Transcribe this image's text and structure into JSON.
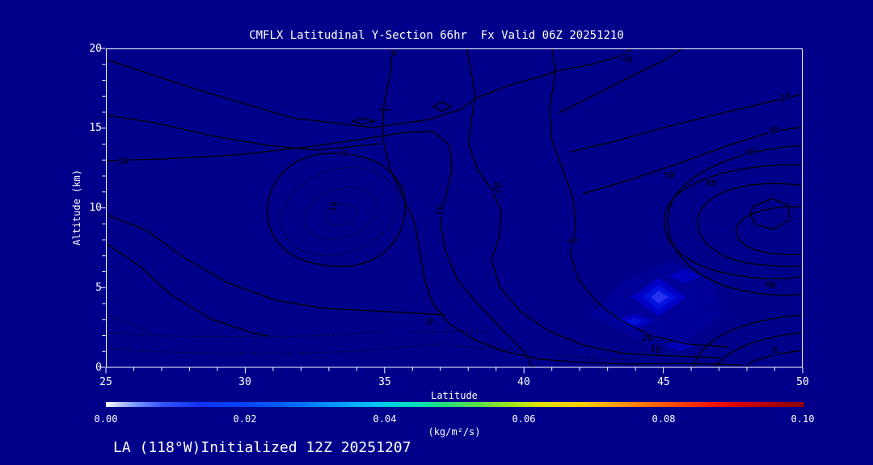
{
  "title": "CMFLX Latitudinal Y-Section 66hr  Fx Valid 06Z 20251210",
  "footer": "LA (118°W)Initialized 12Z 20251207",
  "axes": {
    "y": {
      "label": "Altitude (km)",
      "ticks": [
        "20",
        "15",
        "10",
        "5",
        "0"
      ]
    },
    "x": {
      "label": "Latitude",
      "ticks": [
        "25",
        "30",
        "35",
        "40",
        "45",
        "50"
      ]
    }
  },
  "colorbar": {
    "ticks": [
      "0.00",
      "0.02",
      "0.04",
      "0.06",
      "0.08",
      "0.10"
    ],
    "units": "(kg/m²/s)"
  },
  "contour_labels": [
    "0",
    "10",
    "20",
    "30",
    "40",
    "50",
    "60",
    "10",
    "0",
    "-10",
    "10",
    "20",
    "30",
    "0",
    "40",
    "20",
    "10",
    "0"
  ],
  "colors": {
    "background": "#00008B",
    "contour": "#000000",
    "text": "#FFFFFF",
    "frame": "#FFFFFF"
  },
  "chart_data": {
    "type": "contour",
    "title": "CMFLX Latitudinal Y-Section 66hr  Fx Valid 06Z 20251210",
    "xlabel": "Latitude",
    "xlim": [
      25,
      50
    ],
    "xticks": [
      25,
      30,
      35,
      40,
      45,
      50
    ],
    "ylabel": "Altitude (km)",
    "ylim": [
      0,
      20
    ],
    "yticks": [
      0,
      5,
      10,
      15,
      20
    ],
    "contour_levels": [
      -10,
      0,
      10,
      20,
      30,
      40,
      50,
      60
    ],
    "negative_contour_style": "dotted",
    "positive_contour_style": "solid",
    "grid": false,
    "features": [
      {
        "type": "closed_low",
        "lat": 33,
        "alt": 10,
        "innermost_level": -10
      },
      {
        "type": "closed_high",
        "lat": 46.5,
        "alt": 10.5,
        "innermost_level": 60
      },
      {
        "type": "shaded_flux_maximum",
        "lat": 44.8,
        "alt": 4.4,
        "approx_value": 0.012
      },
      {
        "type": "shaded_flux_maximum",
        "lat": 44.0,
        "alt": 2.9,
        "approx_value": 0.008
      },
      {
        "type": "shaded_flux_maximum",
        "lat": 45.8,
        "alt": 5.7,
        "approx_value": 0.008
      }
    ],
    "colorbar": {
      "range": [
        0.0,
        0.1
      ],
      "ticks": [
        0.0,
        0.02,
        0.04,
        0.06,
        0.08,
        0.1
      ],
      "units": "(kg/m²/s)",
      "palette": "white-blue-cyan-green-yellow-red"
    },
    "init_label": "LA (118°W)Initialized 12Z 20251207",
    "valid_label": "Fx Valid 06Z 20251210",
    "forecast_hour": "66hr"
  }
}
